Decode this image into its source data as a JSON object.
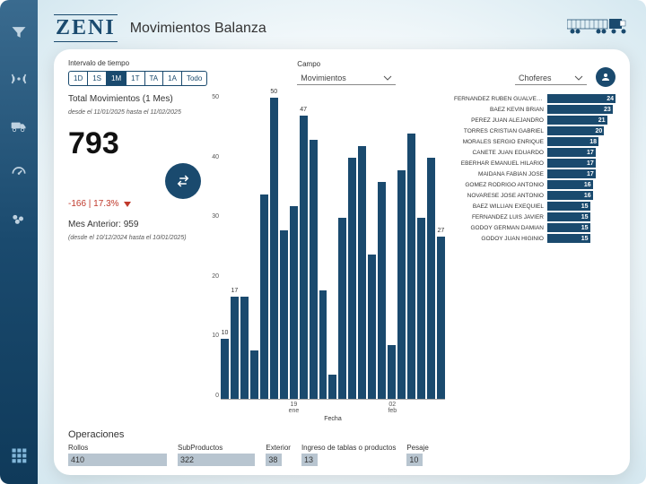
{
  "brand": "ZENI",
  "title": "Movimientos Balanza",
  "colors": {
    "primary": "#1a4a6e",
    "accent": "#8fc5e8",
    "danger": "#c0392b",
    "op_fill": "#b8c5d0"
  },
  "filters": {
    "interval_label": "Intervalo de tiempo",
    "intervals": [
      "1D",
      "1S",
      "1M",
      "1T",
      "TA",
      "1A",
      "Todo"
    ],
    "interval_active": 2,
    "campo_label": "Campo",
    "campo_value": "Movimientos",
    "choferes_label": "Choferes"
  },
  "summary": {
    "title": "Total Movimientos (1 Mes)",
    "range": "desde el 11/01/2025 hasta el 11/02/2025",
    "value": "793",
    "delta": "-166 | 17.3%",
    "prev_label": "Mes Anterior: 959",
    "prev_range": "(desde el 10/12/2024 hasta el 10/01/2025)"
  },
  "chart": {
    "type": "bar",
    "ymax": 50,
    "yticks": [
      50,
      40,
      30,
      20,
      10,
      0
    ],
    "x_axis_label": "Fecha",
    "bars": [
      {
        "v": 10,
        "lbl": "10"
      },
      {
        "v": 17,
        "lbl": "17"
      },
      {
        "v": 17,
        "lbl": ""
      },
      {
        "v": 8,
        "lbl": ""
      },
      {
        "v": 34,
        "lbl": ""
      },
      {
        "v": 50,
        "lbl": "50"
      },
      {
        "v": 28,
        "lbl": ""
      },
      {
        "v": 32,
        "lbl": ""
      },
      {
        "v": 47,
        "lbl": "47"
      },
      {
        "v": 43,
        "lbl": ""
      },
      {
        "v": 18,
        "lbl": ""
      },
      {
        "v": 4,
        "lbl": ""
      },
      {
        "v": 30,
        "lbl": ""
      },
      {
        "v": 40,
        "lbl": ""
      },
      {
        "v": 42,
        "lbl": ""
      },
      {
        "v": 24,
        "lbl": ""
      },
      {
        "v": 36,
        "lbl": ""
      },
      {
        "v": 9,
        "lbl": ""
      },
      {
        "v": 38,
        "lbl": ""
      },
      {
        "v": 44,
        "lbl": ""
      },
      {
        "v": 30,
        "lbl": ""
      },
      {
        "v": 40,
        "lbl": ""
      },
      {
        "v": 27,
        "lbl": "27"
      }
    ],
    "x_labels": [
      "",
      "",
      "",
      "",
      "",
      "",
      "",
      "19 ene",
      "",
      "",
      "",
      "",
      "",
      "",
      "",
      "",
      "",
      "02 feb",
      "",
      "",
      "",
      "",
      ""
    ]
  },
  "drivers": {
    "max": 24,
    "rows": [
      {
        "name": "FERNANDEZ RUBEN GUALVERTO",
        "v": 24
      },
      {
        "name": "BAEZ KEVIN BRIAN",
        "v": 23
      },
      {
        "name": "PEREZ JUAN ALEJANDRO",
        "v": 21
      },
      {
        "name": "TORRES CRISTIAN GABRIEL",
        "v": 20
      },
      {
        "name": "MORALES SERGIO ENRIQUE",
        "v": 18
      },
      {
        "name": "CAÑETE JUAN EDUARDO",
        "v": 17
      },
      {
        "name": "EBERHAR EMANUEL HILARIO",
        "v": 17
      },
      {
        "name": "MAIDANA FABIAN JOSE",
        "v": 17
      },
      {
        "name": "GOMEZ RODRIGO ANTONIO",
        "v": 16
      },
      {
        "name": "NOVARESE JOSE ANTONIO",
        "v": 16
      },
      {
        "name": "BAEZ WILLIAN EXEQUIEL",
        "v": 15
      },
      {
        "name": "FERNANDEZ LUIS JAVIER",
        "v": 15
      },
      {
        "name": "GODOY GERMAN DAMIAN",
        "v": 15
      },
      {
        "name": "GODOY JUAN HIGINIO",
        "v": 15
      }
    ]
  },
  "ops": {
    "title": "Operaciones",
    "max": 410,
    "full_width": 110,
    "items": [
      {
        "label": "Rollos",
        "v": 410
      },
      {
        "label": "SubProductos",
        "v": 322
      },
      {
        "label": "Exterior",
        "v": 38
      },
      {
        "label": "Ingreso de tablas o productos",
        "v": 13
      },
      {
        "label": "Pesaje",
        "v": 10
      }
    ]
  }
}
